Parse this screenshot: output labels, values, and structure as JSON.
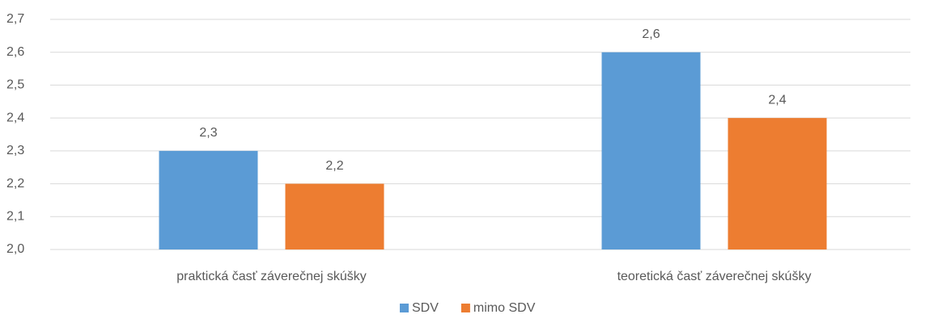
{
  "chart_data": {
    "type": "bar",
    "categories": [
      "praktická časť záverečnej skúšky",
      "teoretická časť záverečnej skúšky"
    ],
    "series": [
      {
        "name": "SDV",
        "color": "#5b9bd5",
        "values": [
          2.3,
          2.6
        ],
        "value_labels": [
          "2,3",
          "2,6"
        ]
      },
      {
        "name": "mimo SDV",
        "color": "#ed7d31",
        "values": [
          2.2,
          2.4
        ],
        "value_labels": [
          "2,2",
          "2,4"
        ]
      }
    ],
    "ylim": [
      2.0,
      2.7
    ],
    "yticks": [
      {
        "value": 2.0,
        "label": "2,0"
      },
      {
        "value": 2.1,
        "label": "2,1"
      },
      {
        "value": 2.2,
        "label": "2,2"
      },
      {
        "value": 2.3,
        "label": "2,3"
      },
      {
        "value": 2.4,
        "label": "2,4"
      },
      {
        "value": 2.5,
        "label": "2,5"
      },
      {
        "value": 2.6,
        "label": "2,6"
      },
      {
        "value": 2.7,
        "label": "2,7"
      }
    ],
    "grid": true,
    "legend": "bottom"
  }
}
